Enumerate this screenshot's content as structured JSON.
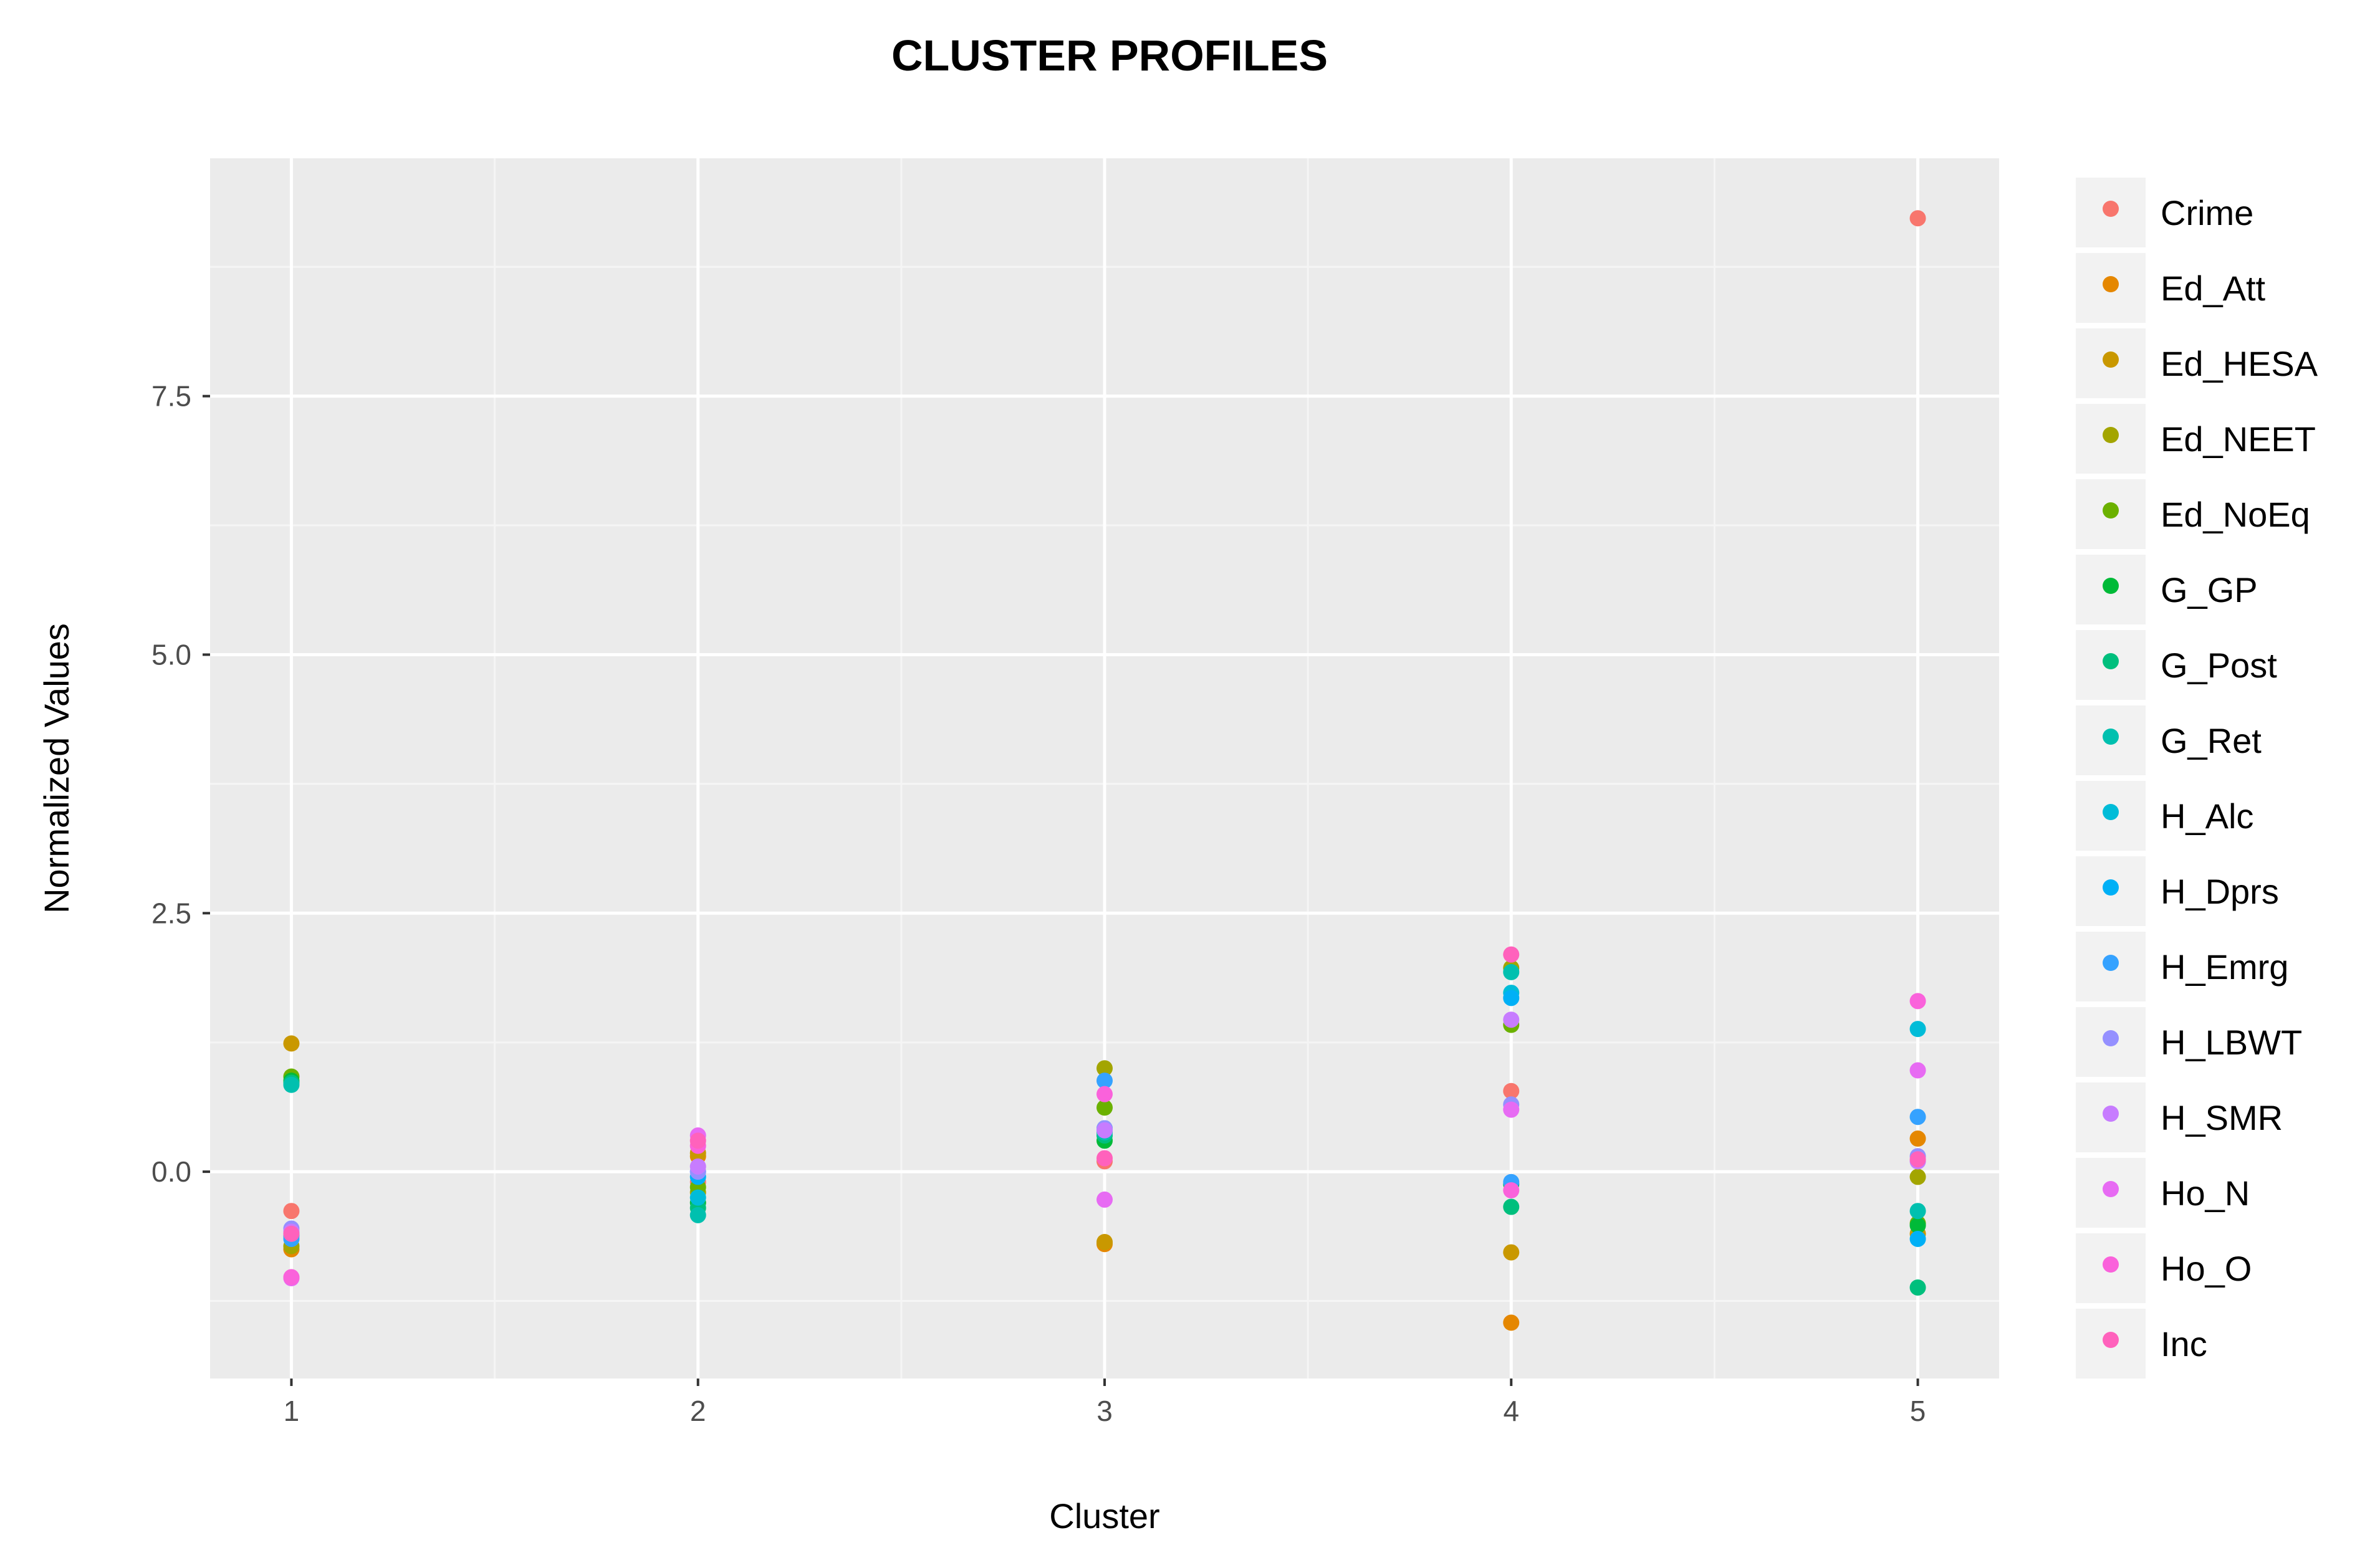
{
  "chart_data": {
    "type": "scatter",
    "title": "CLUSTER PROFILES",
    "xlabel": "Cluster",
    "ylabel": "Normalized Values",
    "x_ticks": [
      "1",
      "2",
      "3",
      "4",
      "5"
    ],
    "y_ticks": [
      "0.0",
      "2.5",
      "5.0",
      "7.5"
    ],
    "y_tick_values": [
      0,
      2.5,
      5,
      7.5
    ],
    "xlim": [
      0.8,
      5.2
    ],
    "ylim": [
      -2.0,
      9.8
    ],
    "grid": true,
    "legend_position": "right",
    "series": [
      {
        "name": "Crime",
        "color": "#F8766D",
        "points": [
          [
            1,
            -0.38
          ],
          [
            2,
            -0.1
          ],
          [
            3,
            0.1
          ],
          [
            4,
            0.78
          ],
          [
            5,
            9.22
          ]
        ]
      },
      {
        "name": "Ed_Att",
        "color": "#E58700",
        "points": [
          [
            1,
            -0.75
          ],
          [
            2,
            0.15
          ],
          [
            3,
            -0.7
          ],
          [
            4,
            -1.46
          ],
          [
            5,
            0.32
          ]
        ]
      },
      {
        "name": "Ed_HESA",
        "color": "#C99800",
        "points": [
          [
            1,
            1.24
          ],
          [
            2,
            0.18
          ],
          [
            3,
            -0.68
          ],
          [
            4,
            -0.78
          ],
          [
            5,
            -0.6
          ]
        ]
      },
      {
        "name": "Ed_NEET",
        "color": "#A3A500",
        "points": [
          [
            1,
            -0.72
          ],
          [
            2,
            -0.2
          ],
          [
            3,
            1.0
          ],
          [
            4,
            1.97
          ],
          [
            5,
            -0.05
          ]
        ]
      },
      {
        "name": "Ed_NoEq",
        "color": "#6BB100",
        "points": [
          [
            1,
            0.92
          ],
          [
            2,
            -0.15
          ],
          [
            3,
            0.62
          ],
          [
            4,
            1.42
          ],
          [
            5,
            -0.5
          ]
        ]
      },
      {
        "name": "G_GP",
        "color": "#00BA38",
        "points": [
          [
            1,
            0.88
          ],
          [
            2,
            -0.3
          ],
          [
            3,
            0.3
          ],
          [
            4,
            -0.12
          ],
          [
            5,
            -0.52
          ]
        ]
      },
      {
        "name": "G_Post",
        "color": "#00BF7D",
        "points": [
          [
            1,
            0.86
          ],
          [
            2,
            -0.35
          ],
          [
            3,
            0.35
          ],
          [
            4,
            -0.34
          ],
          [
            5,
            -1.12
          ]
        ]
      },
      {
        "name": "G_Ret",
        "color": "#00C0AF",
        "points": [
          [
            1,
            0.84
          ],
          [
            2,
            -0.42
          ],
          [
            3,
            0.38
          ],
          [
            4,
            1.93
          ],
          [
            5,
            -0.38
          ]
        ]
      },
      {
        "name": "H_Alc",
        "color": "#00BCD8",
        "points": [
          [
            1,
            -0.6
          ],
          [
            2,
            -0.25
          ],
          [
            3,
            0.42
          ],
          [
            4,
            1.73
          ],
          [
            5,
            1.38
          ]
        ]
      },
      {
        "name": "H_Dprs",
        "color": "#00B0F6",
        "points": [
          [
            1,
            -0.62
          ],
          [
            2,
            -0.05
          ],
          [
            3,
            0.4
          ],
          [
            4,
            1.68
          ],
          [
            5,
            -0.65
          ]
        ]
      },
      {
        "name": "H_Emrg",
        "color": "#35A2FF",
        "points": [
          [
            1,
            -0.65
          ],
          [
            2,
            0.0
          ],
          [
            3,
            0.88
          ],
          [
            4,
            -0.1
          ],
          [
            5,
            0.53
          ]
        ]
      },
      {
        "name": "H_LBWT",
        "color": "#9590FF",
        "points": [
          [
            1,
            -0.55
          ],
          [
            2,
            0.0
          ],
          [
            3,
            0.42
          ],
          [
            4,
            0.65
          ],
          [
            5,
            0.15
          ]
        ]
      },
      {
        "name": "H_SMR",
        "color": "#C77CFF",
        "points": [
          [
            1,
            -0.58
          ],
          [
            2,
            0.05
          ],
          [
            3,
            0.4
          ],
          [
            4,
            1.47
          ],
          [
            5,
            0.1
          ]
        ]
      },
      {
        "name": "Ho_N",
        "color": "#E76BF3",
        "points": [
          [
            1,
            -1.03
          ],
          [
            2,
            0.35
          ],
          [
            3,
            -0.27
          ],
          [
            4,
            0.6
          ],
          [
            5,
            0.98
          ]
        ]
      },
      {
        "name": "Ho_O",
        "color": "#FA62DB",
        "points": [
          [
            1,
            -1.02
          ],
          [
            2,
            0.25
          ],
          [
            3,
            0.75
          ],
          [
            4,
            -0.18
          ],
          [
            5,
            1.65
          ]
        ]
      },
      {
        "name": "Inc",
        "color": "#FF62BC",
        "points": [
          [
            1,
            -0.6
          ],
          [
            2,
            0.3
          ],
          [
            3,
            0.13
          ],
          [
            4,
            2.1
          ],
          [
            5,
            0.12
          ]
        ]
      }
    ]
  }
}
